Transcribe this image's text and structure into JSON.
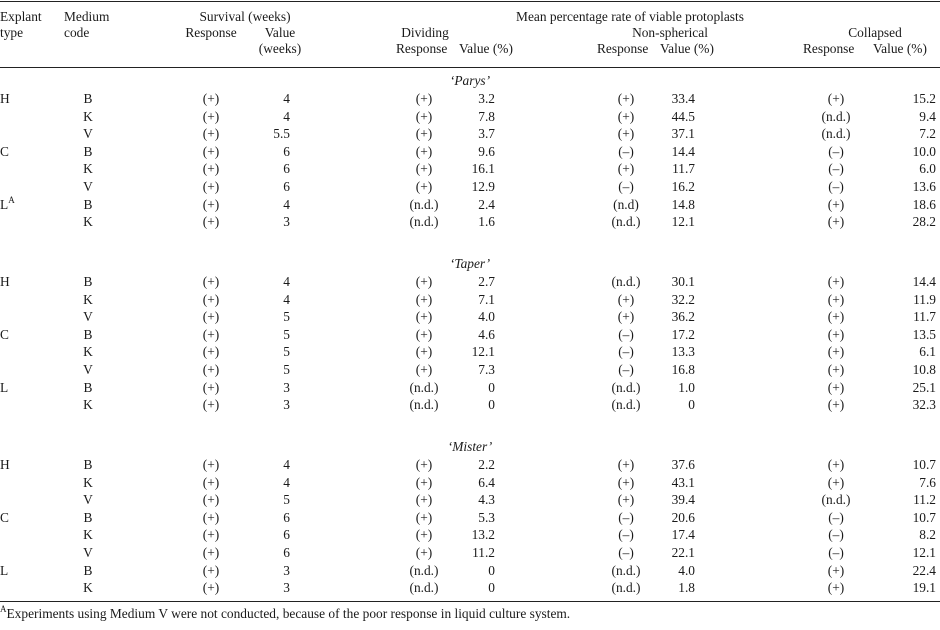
{
  "headers": {
    "explant_type_1": "Explant",
    "explant_type_2": "type",
    "medium_code_1": "Medium",
    "medium_code_2": "code",
    "survival": "Survival (weeks)",
    "survival_response": "Response",
    "survival_value_1": "Value",
    "survival_value_2": "(weeks)",
    "mean_rate": "Mean percentage rate of viable protoplasts",
    "dividing": "Dividing",
    "non_spherical": "Non-spherical",
    "collapsed": "Collapsed",
    "response": "Response",
    "value_pct": "Value (%)"
  },
  "groups": [
    {
      "name": "‘Parys’",
      "rows": [
        {
          "explant": "H",
          "sup": "",
          "medium": "B",
          "s_resp": "(+)",
          "s_val": "4",
          "d_resp": "(+)",
          "d_val": "3.2",
          "n_resp": "(+)",
          "n_val": "33.4",
          "c_resp": "(+)",
          "c_val": "15.2"
        },
        {
          "explant": "",
          "sup": "",
          "medium": "K",
          "s_resp": "(+)",
          "s_val": "4",
          "d_resp": "(+)",
          "d_val": "7.8",
          "n_resp": "(+)",
          "n_val": "44.5",
          "c_resp": "(n.d.)",
          "c_val": "9.4"
        },
        {
          "explant": "",
          "sup": "",
          "medium": "V",
          "s_resp": "(+)",
          "s_val": "5.5",
          "d_resp": "(+)",
          "d_val": "3.7",
          "n_resp": "(+)",
          "n_val": "37.1",
          "c_resp": "(n.d.)",
          "c_val": "7.2"
        },
        {
          "explant": "C",
          "sup": "",
          "medium": "B",
          "s_resp": "(+)",
          "s_val": "6",
          "d_resp": "(+)",
          "d_val": "9.6",
          "n_resp": "(–)",
          "n_val": "14.4",
          "c_resp": "(–)",
          "c_val": "10.0"
        },
        {
          "explant": "",
          "sup": "",
          "medium": "K",
          "s_resp": "(+)",
          "s_val": "6",
          "d_resp": "(+)",
          "d_val": "16.1",
          "n_resp": "(+)",
          "n_val": "11.7",
          "c_resp": "(–)",
          "c_val": "6.0"
        },
        {
          "explant": "",
          "sup": "",
          "medium": "V",
          "s_resp": "(+)",
          "s_val": "6",
          "d_resp": "(+)",
          "d_val": "12.9",
          "n_resp": "(–)",
          "n_val": "16.2",
          "c_resp": "(–)",
          "c_val": "13.6"
        },
        {
          "explant": "L",
          "sup": "A",
          "medium": "B",
          "s_resp": "(+)",
          "s_val": "4",
          "d_resp": "(n.d.)",
          "d_val": "2.4",
          "n_resp": "(n.d)",
          "n_val": "14.8",
          "c_resp": "(+)",
          "c_val": "18.6"
        },
        {
          "explant": "",
          "sup": "",
          "medium": "K",
          "s_resp": "(+)",
          "s_val": "3",
          "d_resp": "(n.d.)",
          "d_val": "1.6",
          "n_resp": "(n.d.)",
          "n_val": "12.1",
          "c_resp": "(+)",
          "c_val": "28.2"
        }
      ]
    },
    {
      "name": "‘Taper’",
      "rows": [
        {
          "explant": "H",
          "sup": "",
          "medium": "B",
          "s_resp": "(+)",
          "s_val": "4",
          "d_resp": "(+)",
          "d_val": "2.7",
          "n_resp": "(n.d.)",
          "n_val": "30.1",
          "c_resp": "(+)",
          "c_val": "14.4"
        },
        {
          "explant": "",
          "sup": "",
          "medium": "K",
          "s_resp": "(+)",
          "s_val": "4",
          "d_resp": "(+)",
          "d_val": "7.1",
          "n_resp": "(+)",
          "n_val": "32.2",
          "c_resp": "(+)",
          "c_val": "11.9"
        },
        {
          "explant": "",
          "sup": "",
          "medium": "V",
          "s_resp": "(+)",
          "s_val": "5",
          "d_resp": "(+)",
          "d_val": "4.0",
          "n_resp": "(+)",
          "n_val": "36.2",
          "c_resp": "(+)",
          "c_val": "11.7"
        },
        {
          "explant": "C",
          "sup": "",
          "medium": "B",
          "s_resp": "(+)",
          "s_val": "5",
          "d_resp": "(+)",
          "d_val": "4.6",
          "n_resp": "(–)",
          "n_val": "17.2",
          "c_resp": "(+)",
          "c_val": "13.5"
        },
        {
          "explant": "",
          "sup": "",
          "medium": "K",
          "s_resp": "(+)",
          "s_val": "5",
          "d_resp": "(+)",
          "d_val": "12.1",
          "n_resp": "(–)",
          "n_val": "13.3",
          "c_resp": "(+)",
          "c_val": "6.1"
        },
        {
          "explant": "",
          "sup": "",
          "medium": "V",
          "s_resp": "(+)",
          "s_val": "5",
          "d_resp": "(+)",
          "d_val": "7.3",
          "n_resp": "(–)",
          "n_val": "16.8",
          "c_resp": "(+)",
          "c_val": "10.8"
        },
        {
          "explant": "L",
          "sup": "",
          "medium": "B",
          "s_resp": "(+)",
          "s_val": "3",
          "d_resp": "(n.d.)",
          "d_val": "0",
          "n_resp": "(n.d.)",
          "n_val": "1.0",
          "c_resp": "(+)",
          "c_val": "25.1"
        },
        {
          "explant": "",
          "sup": "",
          "medium": "K",
          "s_resp": "(+)",
          "s_val": "3",
          "d_resp": "(n.d.)",
          "d_val": "0",
          "n_resp": "(n.d.)",
          "n_val": "0",
          "c_resp": "(+)",
          "c_val": "32.3"
        }
      ]
    },
    {
      "name": "‘Mister’",
      "rows": [
        {
          "explant": "H",
          "sup": "",
          "medium": "B",
          "s_resp": "(+)",
          "s_val": "4",
          "d_resp": "(+)",
          "d_val": "2.2",
          "n_resp": "(+)",
          "n_val": "37.6",
          "c_resp": "(+)",
          "c_val": "10.7"
        },
        {
          "explant": "",
          "sup": "",
          "medium": "K",
          "s_resp": "(+)",
          "s_val": "4",
          "d_resp": "(+)",
          "d_val": "6.4",
          "n_resp": "(+)",
          "n_val": "43.1",
          "c_resp": "(+)",
          "c_val": "7.6"
        },
        {
          "explant": "",
          "sup": "",
          "medium": "V",
          "s_resp": "(+)",
          "s_val": "5",
          "d_resp": "(+)",
          "d_val": "4.3",
          "n_resp": "(+)",
          "n_val": "39.4",
          "c_resp": "(n.d.)",
          "c_val": "11.2"
        },
        {
          "explant": "C",
          "sup": "",
          "medium": "B",
          "s_resp": "(+)",
          "s_val": "6",
          "d_resp": "(+)",
          "d_val": "5.3",
          "n_resp": "(–)",
          "n_val": "20.6",
          "c_resp": "(–)",
          "c_val": "10.7"
        },
        {
          "explant": "",
          "sup": "",
          "medium": "K",
          "s_resp": "(+)",
          "s_val": "6",
          "d_resp": "(+)",
          "d_val": "13.2",
          "n_resp": "(–)",
          "n_val": "17.4",
          "c_resp": "(–)",
          "c_val": "8.2"
        },
        {
          "explant": "",
          "sup": "",
          "medium": "V",
          "s_resp": "(+)",
          "s_val": "6",
          "d_resp": "(+)",
          "d_val": "11.2",
          "n_resp": "(–)",
          "n_val": "22.1",
          "c_resp": "(–)",
          "c_val": "12.1"
        },
        {
          "explant": "L",
          "sup": "",
          "medium": "B",
          "s_resp": "(+)",
          "s_val": "3",
          "d_resp": "(n.d.)",
          "d_val": "0",
          "n_resp": "(n.d.)",
          "n_val": "4.0",
          "c_resp": "(+)",
          "c_val": "22.4"
        },
        {
          "explant": "",
          "sup": "",
          "medium": "K",
          "s_resp": "(+)",
          "s_val": "3",
          "d_resp": "(n.d.)",
          "d_val": "0",
          "n_resp": "(n.d.)",
          "n_val": "1.8",
          "c_resp": "(+)",
          "c_val": "19.1"
        }
      ]
    }
  ],
  "footnote": {
    "marker": "A",
    "text": "Experiments using Medium V were not conducted, because of the poor response in liquid culture system."
  }
}
